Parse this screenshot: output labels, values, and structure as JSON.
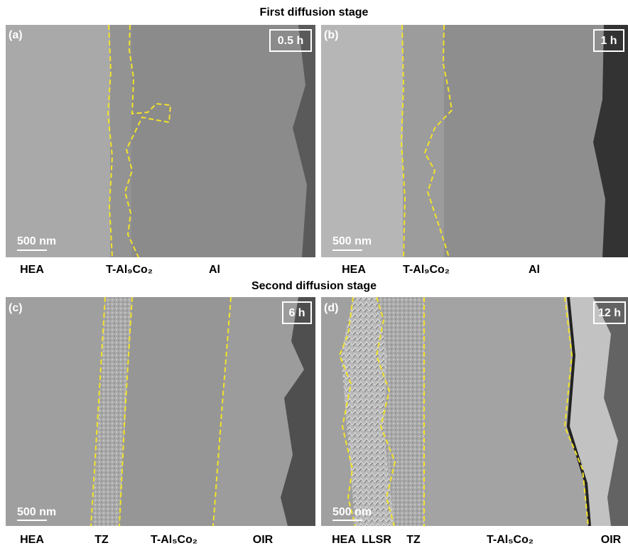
{
  "titles": {
    "first": "First diffusion stage",
    "second": "Second diffusion stage"
  },
  "panels": [
    {
      "label": "(a)",
      "time": "0.5 h",
      "scale": "500 nm",
      "regions": [
        "HEA",
        "T-Al₉Co₂",
        "Al"
      ]
    },
    {
      "label": "(b)",
      "time": "1 h",
      "scale": "500 nm",
      "regions": [
        "HEA",
        "T-Al₉Co₂",
        "Al"
      ]
    },
    {
      "label": "(c)",
      "time": "6 h",
      "scale": "500 nm",
      "regions": [
        "HEA",
        "TZ",
        "T-Al₅Co₂",
        "OIR"
      ]
    },
    {
      "label": "(d)",
      "time": "12 h",
      "scale": "500 nm",
      "regions": [
        "HEA",
        "LLSR",
        "TZ",
        "T-Al₅Co₂",
        "OIR"
      ]
    }
  ]
}
